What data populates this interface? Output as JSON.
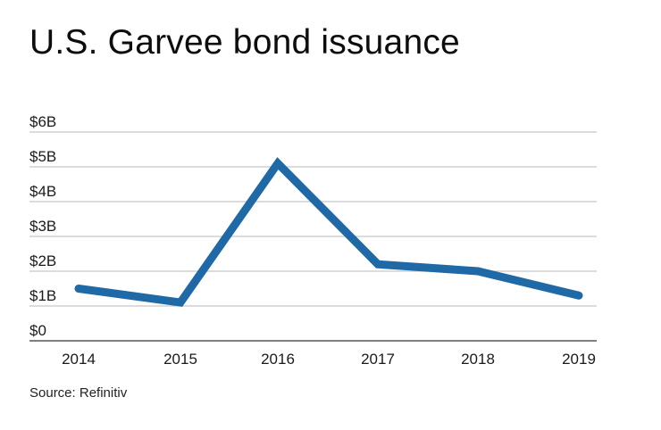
{
  "title": "U.S. Garvee bond issuance",
  "source": "Source: Refinitiv",
  "colors": {
    "line": "#1f69a6",
    "grid": "#c8c8c8",
    "axis": "#555555"
  },
  "chart_data": {
    "type": "line",
    "title": "U.S. Garvee bond issuance",
    "xlabel": "",
    "ylabel": "",
    "categories": [
      "2014",
      "2015",
      "2016",
      "2017",
      "2018",
      "2019"
    ],
    "series": [
      {
        "name": "Garvee bond issuance ($B)",
        "values": [
          1.5,
          1.1,
          5.1,
          2.2,
          2.0,
          1.3
        ]
      }
    ],
    "yticks": [
      "$0",
      "$1B",
      "$2B",
      "$3B",
      "$4B",
      "$5B",
      "$6B"
    ],
    "ylim": [
      0,
      6
    ],
    "grid": true,
    "legend": "none",
    "source": "Source: Refinitiv"
  }
}
